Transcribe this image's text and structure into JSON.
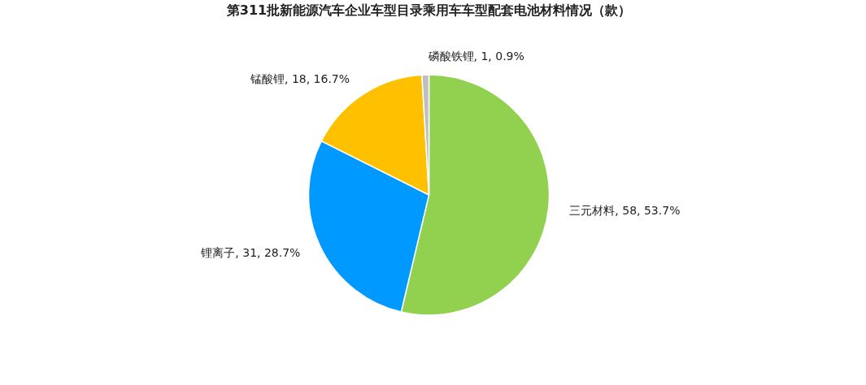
{
  "chart_data": {
    "type": "pie",
    "title": "第311批新能源汽车企业车型目录乘用车车型配套电池材料情况（款）",
    "categories": [
      "三元材料",
      "锂离子",
      "锰酸锂",
      "磷酸铁锂"
    ],
    "values": [
      58,
      31,
      18,
      1
    ],
    "colors": [
      "#92d050",
      "#0099ff",
      "#ffc000",
      "#bfbfbf"
    ],
    "value_labels": [
      "58, 53.7%",
      "31, 28.7%",
      "18, 16.7%",
      "1, 0.9%"
    ],
    "legend": false
  }
}
